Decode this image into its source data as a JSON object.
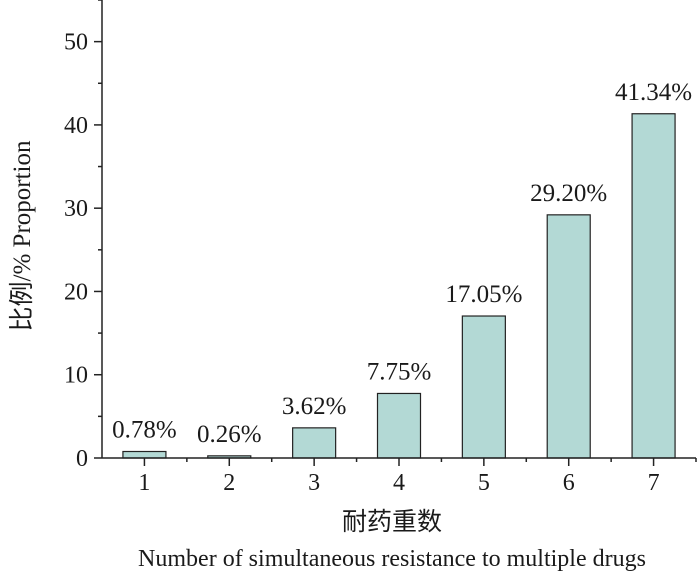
{
  "chart_data": {
    "type": "bar",
    "categories": [
      "1",
      "2",
      "3",
      "4",
      "5",
      "6",
      "7"
    ],
    "values": [
      0.78,
      0.26,
      3.62,
      7.75,
      17.05,
      29.2,
      41.34
    ],
    "data_labels": [
      "0.78%",
      "0.26%",
      "3.62%",
      "7.75%",
      "17.05%",
      "29.20%",
      "41.34%"
    ],
    "xlabel": "耐药重数",
    "xlabel_en": "Number of simultaneous resistance to multiple drugs",
    "ylabel": "比例/% Proportion",
    "ylim": [
      0,
      55
    ],
    "yticks": [
      0,
      10,
      20,
      30,
      40,
      50
    ],
    "grid": false,
    "bar_color": "#b3d9d5",
    "bar_edge_color": "#222222"
  }
}
